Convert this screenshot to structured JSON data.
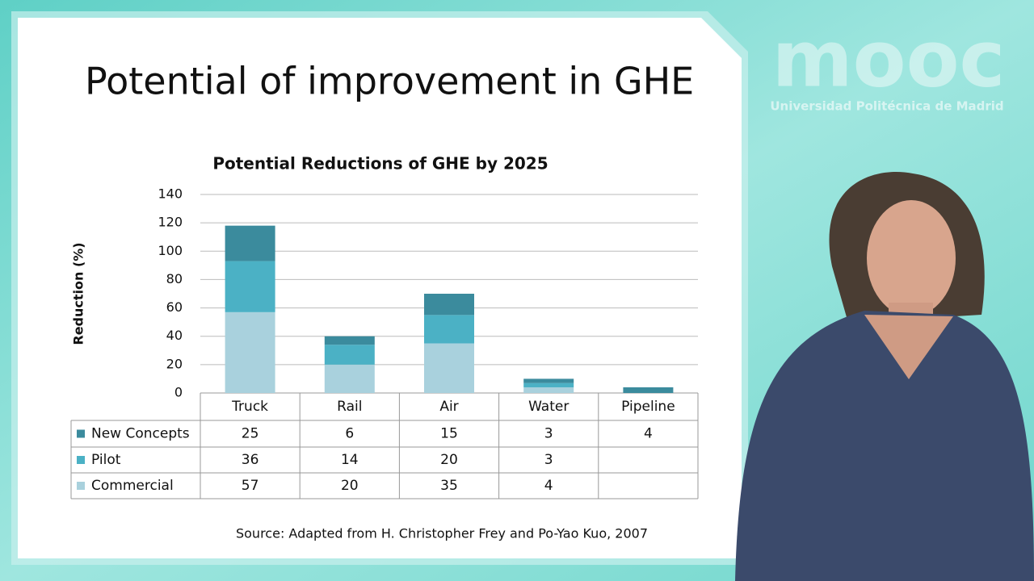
{
  "slide_title": "Potential of improvement in GHE",
  "logo": {
    "mark": "mooc",
    "institution": "Universidad Politécnica de Madrid"
  },
  "source": "Source: Adapted from H. Christopher Frey and Po-Yao Kuo, 2007",
  "chart_data": {
    "type": "bar",
    "stacked": true,
    "data_table": true,
    "title": "Potential Reductions of GHE by 2025",
    "ylabel": "Reduction (%)",
    "categories": [
      "Truck",
      "Rail",
      "Air",
      "Water",
      "Pipeline"
    ],
    "series": [
      {
        "name": "New Concepts",
        "color": "#3b8b9d",
        "values": [
          25,
          6,
          15,
          3,
          4
        ]
      },
      {
        "name": "Pilot",
        "color": "#4bb1c5",
        "values": [
          36,
          14,
          20,
          3,
          null
        ]
      },
      {
        "name": "Commercial",
        "color": "#a9d1dd",
        "values": [
          57,
          20,
          35,
          4,
          null
        ]
      }
    ],
    "ylim": [
      0,
      140
    ],
    "yticks": [
      0,
      20,
      40,
      60,
      80,
      100,
      120,
      140
    ],
    "grid": true
  }
}
